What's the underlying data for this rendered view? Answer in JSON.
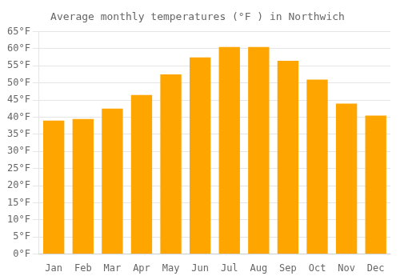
{
  "chart_data": {
    "type": "bar",
    "title": "Average monthly temperatures (°F ) in Northwich",
    "categories": [
      "Jan",
      "Feb",
      "Mar",
      "Apr",
      "May",
      "Jun",
      "Jul",
      "Aug",
      "Sep",
      "Oct",
      "Nov",
      "Dec"
    ],
    "values": [
      39,
      39.5,
      42.5,
      46.5,
      52.5,
      57.5,
      60.5,
      60.5,
      56.5,
      51,
      44,
      40.5
    ],
    "color": "#FFA500",
    "ylim": [
      0,
      65
    ],
    "yticks": [
      {
        "value": 0,
        "label": "0°F"
      },
      {
        "value": 5,
        "label": "5°F"
      },
      {
        "value": 10,
        "label": "10°F"
      },
      {
        "value": 15,
        "label": "15°F"
      },
      {
        "value": 20,
        "label": "20°F"
      },
      {
        "value": 25,
        "label": "25°F"
      },
      {
        "value": 30,
        "label": "30°F"
      },
      {
        "value": 35,
        "label": "35°F"
      },
      {
        "value": 40,
        "label": "40°F"
      },
      {
        "value": 45,
        "label": "45°F"
      },
      {
        "value": 50,
        "label": "50°F"
      },
      {
        "value": 55,
        "label": "55°F"
      },
      {
        "value": 60,
        "label": "60°F"
      },
      {
        "value": 65,
        "label": "65°F"
      }
    ],
    "grid": true
  }
}
